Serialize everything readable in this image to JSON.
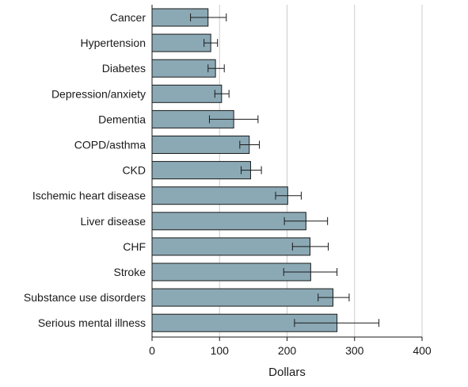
{
  "chart_data": {
    "type": "bar",
    "orientation": "horizontal",
    "categories": [
      "Cancer",
      "Hypertension",
      "Diabetes",
      "Depression/anxiety",
      "Dementia",
      "COPD/asthma",
      "CKD",
      "Ischemic heart disease",
      "Liver disease",
      "CHF",
      "Stroke",
      "Substance use disorders",
      "Serious mental illness"
    ],
    "values": [
      83,
      87,
      94,
      103,
      121,
      144,
      146,
      201,
      228,
      234,
      235,
      268,
      274
    ],
    "error_low": [
      57,
      77,
      83,
      93,
      85,
      130,
      132,
      183,
      196,
      208,
      195,
      246,
      211
    ],
    "error_high": [
      110,
      97,
      107,
      114,
      157,
      159,
      162,
      221,
      260,
      261,
      274,
      292,
      336
    ],
    "xlabel": "Dollars",
    "ylabel": "",
    "title": "",
    "xlim": [
      0,
      400
    ],
    "xticks": [
      0,
      100,
      200,
      300,
      400
    ],
    "grid": "vertical",
    "bar_color": "#8ba9b5",
    "bar_edge_color": "#1a1a1a",
    "grid_color": "#cccccc"
  }
}
